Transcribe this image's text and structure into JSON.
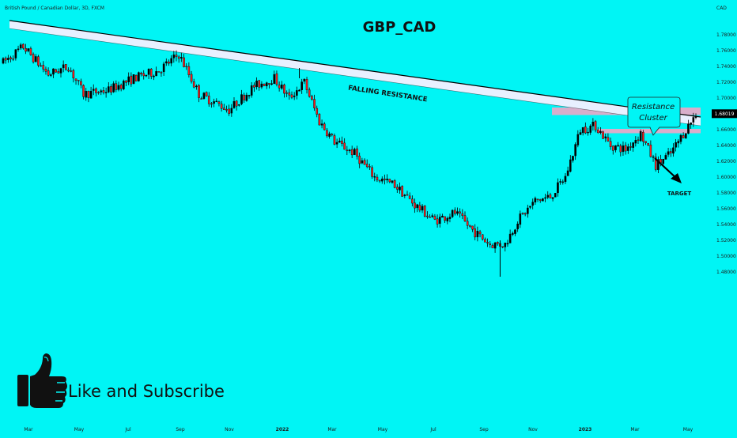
{
  "header": {
    "symbol_info": "British Pound / Canadian Dollar, 3D, FXCM",
    "currency": "CAD"
  },
  "colors": {
    "background": "#00f5f5",
    "candle_up": "#000000",
    "candle_down": "#ff1a1a",
    "resistance_band": "#e8f0ff",
    "zone": "#f0a6c6",
    "price_tag": "#000000"
  },
  "icons": {
    "like": "thumbs-up-icon"
  },
  "cta": {
    "label": "Like and Subscribe"
  },
  "chart_data": {
    "type": "candlestick",
    "title": "GBP_CAD",
    "x_tick_labels": [
      "Mar",
      "May",
      "Jul",
      "Sep",
      "Nov",
      "2022",
      "Mar",
      "May",
      "Jul",
      "Sep",
      "Nov",
      "2023",
      "Mar",
      "May"
    ],
    "y_tick_labels": [
      "1.78000",
      "1.76000",
      "1.74000",
      "1.72000",
      "1.70000",
      "1.68000",
      "1.66000",
      "1.64000",
      "1.62000",
      "1.60000",
      "1.58000",
      "1.56000",
      "1.54000",
      "1.52000",
      "1.50000",
      "1.48000"
    ],
    "ylim": [
      1.47,
      1.81
    ],
    "current_price": "1.68019",
    "path_points": [
      {
        "i": 0,
        "price": 1.745
      },
      {
        "i": 8,
        "price": 1.765
      },
      {
        "i": 18,
        "price": 1.73
      },
      {
        "i": 26,
        "price": 1.74
      },
      {
        "i": 32,
        "price": 1.705
      },
      {
        "i": 42,
        "price": 1.71
      },
      {
        "i": 52,
        "price": 1.725
      },
      {
        "i": 62,
        "price": 1.735
      },
      {
        "i": 70,
        "price": 1.755
      },
      {
        "i": 78,
        "price": 1.705
      },
      {
        "i": 90,
        "price": 1.685
      },
      {
        "i": 100,
        "price": 1.715
      },
      {
        "i": 108,
        "price": 1.725
      },
      {
        "i": 114,
        "price": 1.7
      },
      {
        "i": 120,
        "price": 1.72
      },
      {
        "i": 126,
        "price": 1.67
      },
      {
        "i": 132,
        "price": 1.645
      },
      {
        "i": 140,
        "price": 1.63
      },
      {
        "i": 148,
        "price": 1.6
      },
      {
        "i": 156,
        "price": 1.59
      },
      {
        "i": 164,
        "price": 1.565
      },
      {
        "i": 172,
        "price": 1.545
      },
      {
        "i": 180,
        "price": 1.555
      },
      {
        "i": 188,
        "price": 1.53
      },
      {
        "i": 194,
        "price": 1.515
      },
      {
        "i": 200,
        "price": 1.515
      },
      {
        "i": 205,
        "price": 1.545
      },
      {
        "i": 212,
        "price": 1.57
      },
      {
        "i": 218,
        "price": 1.575
      },
      {
        "i": 224,
        "price": 1.6
      },
      {
        "i": 230,
        "price": 1.66
      },
      {
        "i": 236,
        "price": 1.665
      },
      {
        "i": 242,
        "price": 1.64
      },
      {
        "i": 248,
        "price": 1.635
      },
      {
        "i": 254,
        "price": 1.655
      },
      {
        "i": 260,
        "price": 1.615
      },
      {
        "i": 266,
        "price": 1.63
      },
      {
        "i": 272,
        "price": 1.66
      },
      {
        "i": 276,
        "price": 1.68
      }
    ],
    "annotations": {
      "trendline_label": "FALLING RESISTANCE",
      "callout": [
        "Resistance",
        "Cluster"
      ],
      "target_label": "TARGET"
    },
    "falling_resistance": {
      "start_price": 1.797,
      "end_price": 1.675
    },
    "zones": [
      {
        "name": "resistance",
        "low": 1.6785,
        "high": 1.688
      },
      {
        "name": "target",
        "low": 1.6555,
        "high": 1.661
      }
    ],
    "grid": false
  }
}
